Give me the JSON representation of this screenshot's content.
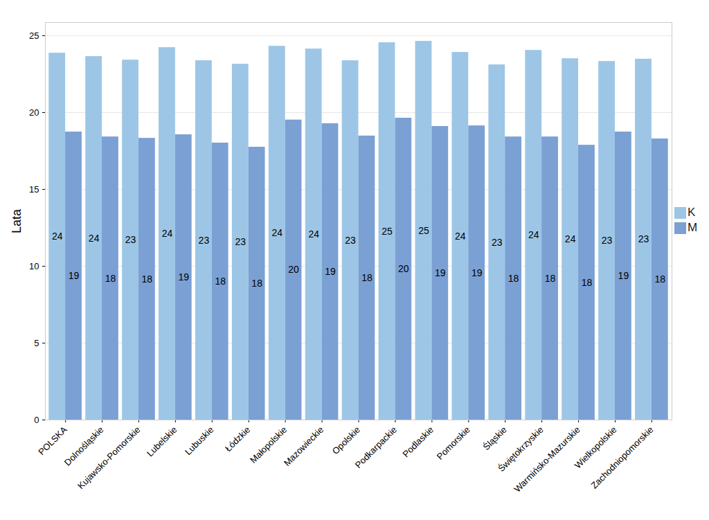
{
  "chart_data": {
    "type": "bar",
    "y_label": "Lata",
    "categories": [
      "POLSKA",
      "Dolnośląskie",
      "Kujawsko-Pomorskie",
      "Lubelskie",
      "Lubuskie",
      "Łódzkie",
      "Małopolskie",
      "Mazowieckie",
      "Opolskie",
      "Podkarpackie",
      "Podlaskie",
      "Pomorskie",
      "Śląskie",
      "Świętokrzyskie",
      "Warmińsko-Mazurskie",
      "Wielkopolskie",
      "Zachodniopomorskie"
    ],
    "series": [
      {
        "name": "K",
        "color": "#9dc6e6",
        "values": [
          23.87,
          23.65,
          23.42,
          24.23,
          23.38,
          23.15,
          24.32,
          24.14,
          23.38,
          24.55,
          24.64,
          23.92,
          23.11,
          24.05,
          23.51,
          23.33,
          23.48
        ],
        "value_labels": [
          "24",
          "24",
          "23",
          "24",
          "23",
          "23",
          "24",
          "24",
          "23",
          "25",
          "25",
          "24",
          "23",
          "24",
          "24",
          "23",
          "23"
        ]
      },
      {
        "name": "M",
        "color": "#7ba0d4",
        "values": [
          18.74,
          18.42,
          18.33,
          18.56,
          18.02,
          17.75,
          19.52,
          19.28,
          18.48,
          19.64,
          19.1,
          19.14,
          18.42,
          18.42,
          17.88,
          18.74,
          18.29
        ],
        "value_labels": [
          "19",
          "18",
          "18",
          "19",
          "18",
          "18",
          "20",
          "19",
          "18",
          "20",
          "19",
          "19",
          "18",
          "18",
          "18",
          "19",
          "18"
        ]
      }
    ],
    "ylim": [
      0,
      25.86
    ],
    "yticks": [
      0,
      5,
      10,
      15,
      20,
      25
    ],
    "grid": true,
    "data_labels": true,
    "legend": "right"
  }
}
